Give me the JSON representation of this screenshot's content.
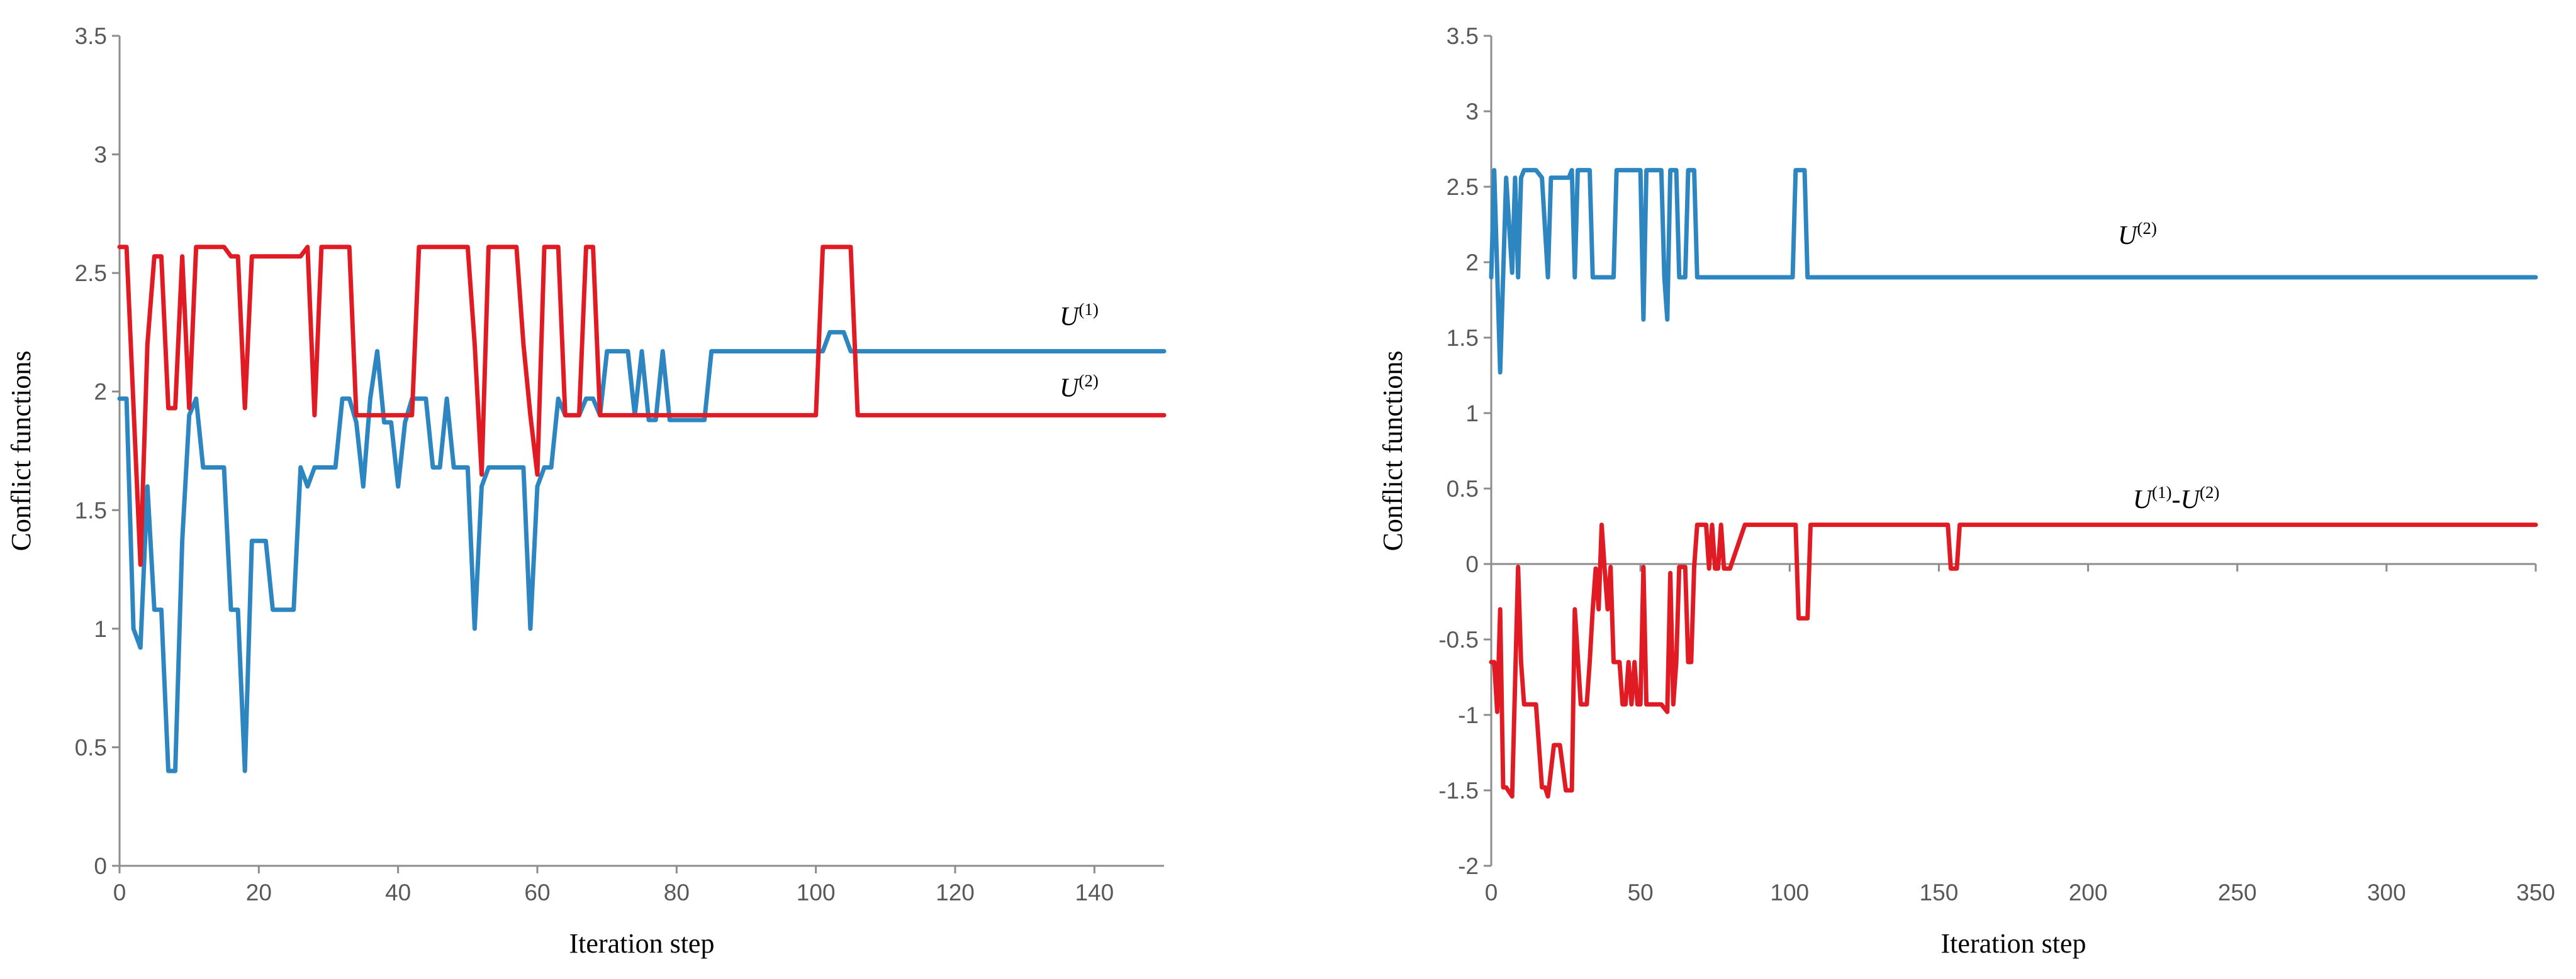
{
  "chart_data": [
    {
      "type": "line",
      "xlabel": "Iteration step",
      "ylabel": "Conflict functions",
      "xlim": [
        0,
        150
      ],
      "ylim": [
        0,
        3.5
      ],
      "xticks": [
        0,
        20,
        40,
        60,
        80,
        100,
        120,
        140
      ],
      "yticks": [
        0,
        0.5,
        1,
        1.5,
        2,
        2.5,
        3,
        3.5
      ],
      "ytick_labels": [
        "0",
        "0.5",
        "1",
        "1.5",
        "2",
        "2.5",
        "3",
        "3.5"
      ],
      "annotations": [
        {
          "base": "U",
          "sup": "(1)",
          "series": "U(1)",
          "x": 135,
          "y": 2.28
        },
        {
          "base": "U",
          "sup": "(2)",
          "series": "U(2)",
          "x": 135,
          "y": 1.98
        }
      ],
      "series": [
        {
          "name": "U(1)",
          "color": "#2e86c1",
          "x": [
            0,
            1,
            2,
            3,
            4,
            5,
            6,
            7,
            8,
            9,
            10,
            11,
            12,
            13,
            14,
            15,
            16,
            17,
            18,
            19,
            20,
            21,
            22,
            23,
            24,
            25,
            26,
            27,
            28,
            29,
            30,
            31,
            32,
            33,
            34,
            35,
            36,
            37,
            38,
            39,
            40,
            41,
            42,
            43,
            44,
            45,
            46,
            47,
            48,
            49,
            50,
            51,
            52,
            53,
            54,
            55,
            56,
            57,
            58,
            59,
            60,
            61,
            62,
            63,
            64,
            65,
            66,
            67,
            68,
            69,
            70,
            71,
            72,
            73,
            74,
            75,
            76,
            77,
            78,
            79,
            80,
            84,
            85,
            100,
            101,
            102,
            103,
            104,
            105,
            106,
            150
          ],
          "y": [
            1.97,
            1.97,
            1.0,
            0.92,
            1.6,
            1.08,
            1.08,
            0.4,
            0.4,
            1.37,
            1.9,
            1.97,
            1.68,
            1.68,
            1.68,
            1.68,
            1.08,
            1.08,
            0.4,
            1.37,
            1.37,
            1.37,
            1.08,
            1.08,
            1.08,
            1.08,
            1.68,
            1.6,
            1.68,
            1.68,
            1.68,
            1.68,
            1.97,
            1.97,
            1.87,
            1.6,
            1.97,
            2.17,
            1.87,
            1.87,
            1.6,
            1.87,
            1.97,
            1.97,
            1.97,
            1.68,
            1.68,
            1.97,
            1.68,
            1.68,
            1.68,
            1.0,
            1.6,
            1.68,
            1.68,
            1.68,
            1.68,
            1.68,
            1.68,
            1.0,
            1.6,
            1.68,
            1.68,
            1.97,
            1.9,
            1.9,
            1.9,
            1.97,
            1.97,
            1.9,
            2.17,
            2.17,
            2.17,
            2.17,
            1.9,
            2.17,
            1.88,
            1.88,
            2.17,
            1.88,
            1.88,
            1.88,
            2.17,
            2.17,
            2.17,
            2.25,
            2.25,
            2.25,
            2.17,
            2.17,
            2.17
          ]
        },
        {
          "name": "U(2)",
          "color": "#e01b24",
          "x": [
            0,
            1,
            3,
            4,
            5,
            6,
            7,
            8,
            9,
            10,
            11,
            12,
            13,
            14,
            15,
            16,
            17,
            18,
            19,
            20,
            21,
            22,
            23,
            24,
            25,
            26,
            27,
            28,
            29,
            30,
            31,
            32,
            33,
            34,
            35,
            36,
            37,
            38,
            39,
            40,
            41,
            42,
            43,
            44,
            45,
            46,
            47,
            48,
            49,
            50,
            51,
            52,
            53,
            54,
            55,
            56,
            57,
            58,
            59,
            60,
            61,
            62,
            63,
            64,
            65,
            66,
            67,
            68,
            69,
            70,
            100,
            101,
            102,
            103,
            104,
            105,
            106,
            150
          ],
          "y": [
            2.61,
            2.61,
            1.27,
            2.2,
            2.57,
            2.57,
            1.93,
            1.93,
            2.57,
            1.93,
            2.61,
            2.61,
            2.61,
            2.61,
            2.61,
            2.57,
            2.57,
            1.93,
            2.57,
            2.57,
            2.57,
            2.57,
            2.57,
            2.57,
            2.57,
            2.57,
            2.61,
            1.9,
            2.61,
            2.61,
            2.61,
            2.61,
            2.61,
            1.9,
            1.9,
            1.9,
            1.9,
            1.9,
            1.9,
            1.9,
            1.9,
            1.9,
            2.61,
            2.61,
            2.61,
            2.61,
            2.61,
            2.61,
            2.61,
            2.61,
            2.2,
            1.65,
            2.61,
            2.61,
            2.61,
            2.61,
            2.61,
            2.2,
            1.9,
            1.65,
            2.61,
            2.61,
            2.61,
            1.9,
            1.9,
            1.9,
            2.61,
            2.61,
            1.9,
            1.9,
            1.9,
            2.61,
            2.61,
            2.61,
            2.61,
            2.61,
            1.9,
            1.9
          ]
        }
      ]
    },
    {
      "type": "line",
      "xlabel": "Iteration step",
      "ylabel": "Conflict functions",
      "xlim": [
        0,
        350
      ],
      "ylim": [
        -2,
        3.5
      ],
      "xticks": [
        0,
        50,
        100,
        150,
        200,
        250,
        300,
        350
      ],
      "yticks": [
        -2,
        -1.5,
        -1,
        -0.5,
        0,
        0.5,
        1,
        1.5,
        2,
        2.5,
        3,
        3.5
      ],
      "ytick_labels": [
        "-2",
        "-1.5",
        "-1",
        "-0.5",
        "0",
        "0.5",
        "1",
        "1.5",
        "2",
        "2.5",
        "3",
        "3.5"
      ],
      "annotations": [
        {
          "base": "U",
          "sup": "(2)",
          "series": "U(2)",
          "x": 210,
          "y": 2.12
        },
        {
          "base": "U",
          "sup": "(1)",
          "mid": "-U",
          "sup2": "(2)",
          "series": "U(1)-U(2)",
          "x": 215,
          "y": 0.37
        }
      ],
      "series": [
        {
          "name": "U(2)",
          "color": "#2e86c1",
          "x": [
            0,
            1,
            3,
            5,
            7,
            8,
            9,
            10,
            11,
            12,
            13,
            15,
            17,
            19,
            20,
            22,
            25,
            26,
            27,
            28,
            29,
            30,
            32,
            33,
            34,
            36,
            37,
            38,
            39,
            41,
            42,
            43,
            45,
            47,
            50,
            51,
            52,
            53,
            55,
            57,
            58,
            59,
            60,
            61,
            62,
            63,
            65,
            66,
            67,
            68,
            69,
            70,
            100,
            101,
            102,
            103,
            104,
            105,
            106,
            107,
            350
          ],
          "y": [
            1.9,
            2.61,
            1.27,
            2.56,
            1.93,
            2.56,
            1.9,
            2.56,
            2.61,
            2.61,
            2.61,
            2.61,
            2.56,
            1.9,
            2.56,
            2.56,
            2.56,
            2.56,
            2.61,
            1.9,
            2.61,
            2.61,
            2.61,
            2.61,
            1.9,
            1.9,
            1.9,
            1.9,
            1.9,
            1.9,
            2.61,
            2.61,
            2.61,
            2.61,
            2.61,
            1.62,
            2.61,
            2.61,
            2.61,
            2.61,
            1.9,
            1.62,
            2.61,
            2.61,
            2.61,
            1.9,
            1.9,
            2.61,
            2.61,
            2.61,
            1.9,
            1.9,
            1.9,
            1.9,
            2.61,
            2.61,
            2.61,
            2.61,
            1.9,
            1.9,
            1.9
          ]
        },
        {
          "name": "U(1)-U(2)",
          "color": "#e01b24",
          "x": [
            0,
            1,
            2,
            3,
            4,
            5,
            7,
            9,
            10,
            11,
            13,
            15,
            17,
            18,
            19,
            21,
            23,
            25,
            26,
            27,
            28,
            30,
            32,
            33,
            34,
            35,
            36,
            37,
            38,
            39,
            40,
            41,
            42,
            43,
            44,
            45,
            46,
            47,
            48,
            49,
            50,
            51,
            52,
            53,
            54,
            55,
            57,
            59,
            60,
            61,
            62,
            63,
            64,
            65,
            66,
            67,
            68,
            69,
            70,
            71,
            72,
            73,
            74,
            75,
            76,
            77,
            78,
            79,
            80,
            85,
            86,
            102,
            103,
            104,
            105,
            106,
            107,
            108,
            152,
            153,
            154,
            155,
            156,
            157,
            158,
            350
          ],
          "y": [
            -0.65,
            -0.65,
            -0.98,
            -0.3,
            -1.48,
            -1.48,
            -1.54,
            -0.02,
            -0.65,
            -0.93,
            -0.93,
            -0.93,
            -1.48,
            -1.48,
            -1.54,
            -1.2,
            -1.2,
            -1.5,
            -1.5,
            -1.5,
            -0.3,
            -0.93,
            -0.93,
            -0.65,
            -0.3,
            -0.03,
            -0.3,
            0.26,
            -0.03,
            -0.3,
            -0.02,
            -0.65,
            -0.65,
            -0.65,
            -0.93,
            -0.93,
            -0.65,
            -0.93,
            -0.65,
            -0.93,
            -0.93,
            -0.02,
            -0.93,
            -0.93,
            -0.93,
            -0.93,
            -0.93,
            -0.98,
            -0.06,
            -0.93,
            -0.65,
            -0.02,
            -0.02,
            -0.02,
            -0.65,
            -0.65,
            -0.02,
            0.26,
            0.26,
            0.26,
            0.26,
            -0.03,
            0.26,
            -0.03,
            -0.03,
            0.26,
            -0.03,
            -0.03,
            -0.03,
            0.26,
            0.26,
            0.26,
            -0.36,
            -0.36,
            -0.36,
            -0.36,
            0.26,
            0.26,
            0.26,
            0.26,
            -0.03,
            -0.03,
            -0.03,
            0.26,
            0.26,
            0.26
          ]
        }
      ]
    }
  ]
}
